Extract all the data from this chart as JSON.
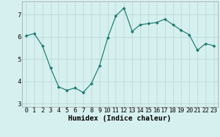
{
  "x": [
    0,
    1,
    2,
    3,
    4,
    5,
    6,
    7,
    8,
    9,
    10,
    11,
    12,
    13,
    14,
    15,
    16,
    17,
    18,
    19,
    20,
    21,
    22,
    23
  ],
  "y": [
    6.05,
    6.15,
    5.6,
    4.6,
    3.75,
    3.6,
    3.7,
    3.5,
    3.9,
    4.7,
    5.95,
    6.95,
    7.3,
    6.25,
    6.55,
    6.6,
    6.65,
    6.8,
    6.55,
    6.3,
    6.1,
    5.4,
    5.7,
    5.6
  ],
  "line_color": "#1a7a6e",
  "marker": "D",
  "marker_size": 2.0,
  "bg_color": "#d6f0ef",
  "grid_color": "#b8d8d5",
  "xlabel": "Humidex (Indice chaleur)",
  "xlabel_fontsize": 7.5,
  "tick_fontsize": 6.5,
  "xlim": [
    -0.5,
    23.5
  ],
  "ylim": [
    2.85,
    7.6
  ],
  "yticks": [
    3,
    4,
    5,
    6,
    7
  ],
  "xticks": [
    0,
    1,
    2,
    3,
    4,
    5,
    6,
    7,
    8,
    9,
    10,
    11,
    12,
    13,
    14,
    15,
    16,
    17,
    18,
    19,
    20,
    21,
    22,
    23
  ],
  "xtick_labels": [
    "0",
    "1",
    "2",
    "3",
    "4",
    "5",
    "6",
    "7",
    "8",
    "9",
    "10",
    "11",
    "12",
    "13",
    "14",
    "15",
    "16",
    "17",
    "18",
    "19",
    "20",
    "21",
    "22",
    "23"
  ]
}
